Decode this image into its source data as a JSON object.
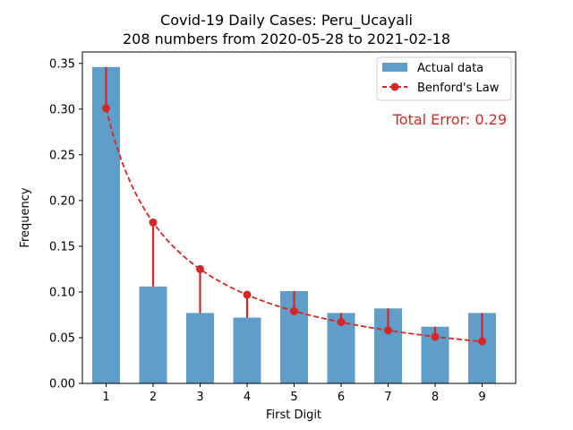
{
  "chart_data": {
    "type": "bar",
    "title": "Covid-19 Daily Cases: Peru_Ucayali",
    "subtitle": "208 numbers from 2020-05-28 to 2021-02-18",
    "xlabel": "First Digit",
    "ylabel": "Frequency",
    "categories": [
      "1",
      "2",
      "3",
      "4",
      "5",
      "6",
      "7",
      "8",
      "9"
    ],
    "ylim": [
      0,
      0.35
    ],
    "yticks": [
      "0.00",
      "0.05",
      "0.10",
      "0.15",
      "0.20",
      "0.25",
      "0.30",
      "0.35"
    ],
    "series": [
      {
        "name": "Actual data",
        "kind": "bar",
        "color": "#5f9ec9",
        "values": [
          0.346,
          0.106,
          0.077,
          0.072,
          0.101,
          0.077,
          0.082,
          0.062,
          0.077
        ]
      },
      {
        "name": "Benford's Law",
        "kind": "line-dashed-markers",
        "color": "#d62728",
        "values": [
          0.301,
          0.176,
          0.125,
          0.097,
          0.079,
          0.067,
          0.058,
          0.051,
          0.046
        ]
      }
    ],
    "annotation": "Total Error: 0.29",
    "annotation_color": "#d62728",
    "legend_position": "top-right",
    "grid": false
  }
}
